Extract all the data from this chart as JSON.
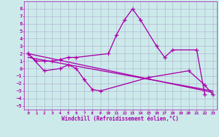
{
  "bg_color": "#cceaea",
  "grid_color": "#aaaacc",
  "line_color": "#aa00aa",
  "xlabel": "Windchill (Refroidissement éolien,°C)",
  "xlim": [
    -0.5,
    23.5
  ],
  "ylim": [
    -5.5,
    9
  ],
  "xticks": [
    0,
    1,
    2,
    3,
    4,
    5,
    6,
    7,
    8,
    9,
    10,
    11,
    12,
    13,
    14,
    15,
    16,
    17,
    18,
    19,
    20,
    21,
    22,
    23
  ],
  "yticks": [
    -5,
    -4,
    -3,
    -2,
    -1,
    0,
    1,
    2,
    3,
    4,
    5,
    6,
    7,
    8
  ],
  "line1_x": [
    0,
    1,
    2,
    3,
    4,
    5,
    6,
    10,
    11,
    12,
    13,
    14,
    16,
    17,
    18,
    21,
    22
  ],
  "line1_y": [
    2.0,
    1.0,
    1.0,
    1.0,
    1.2,
    1.5,
    1.5,
    2.0,
    4.5,
    6.5,
    8.0,
    6.5,
    3.0,
    1.5,
    2.5,
    2.5,
    -3.5
  ],
  "line2_x": [
    0,
    2,
    4,
    5,
    6,
    7,
    8,
    9,
    15,
    20,
    22,
    23
  ],
  "line2_y": [
    2.0,
    -0.3,
    0.0,
    0.5,
    0.0,
    -1.5,
    -2.8,
    -3.0,
    -1.2,
    -0.3,
    -2.2,
    -3.5
  ],
  "line3_x": [
    0,
    23
  ],
  "line3_y": [
    1.5,
    -3.0
  ],
  "line4_x": [
    0,
    23
  ],
  "line4_y": [
    2.0,
    -3.2
  ],
  "marker_size": 4,
  "lw": 1.0
}
